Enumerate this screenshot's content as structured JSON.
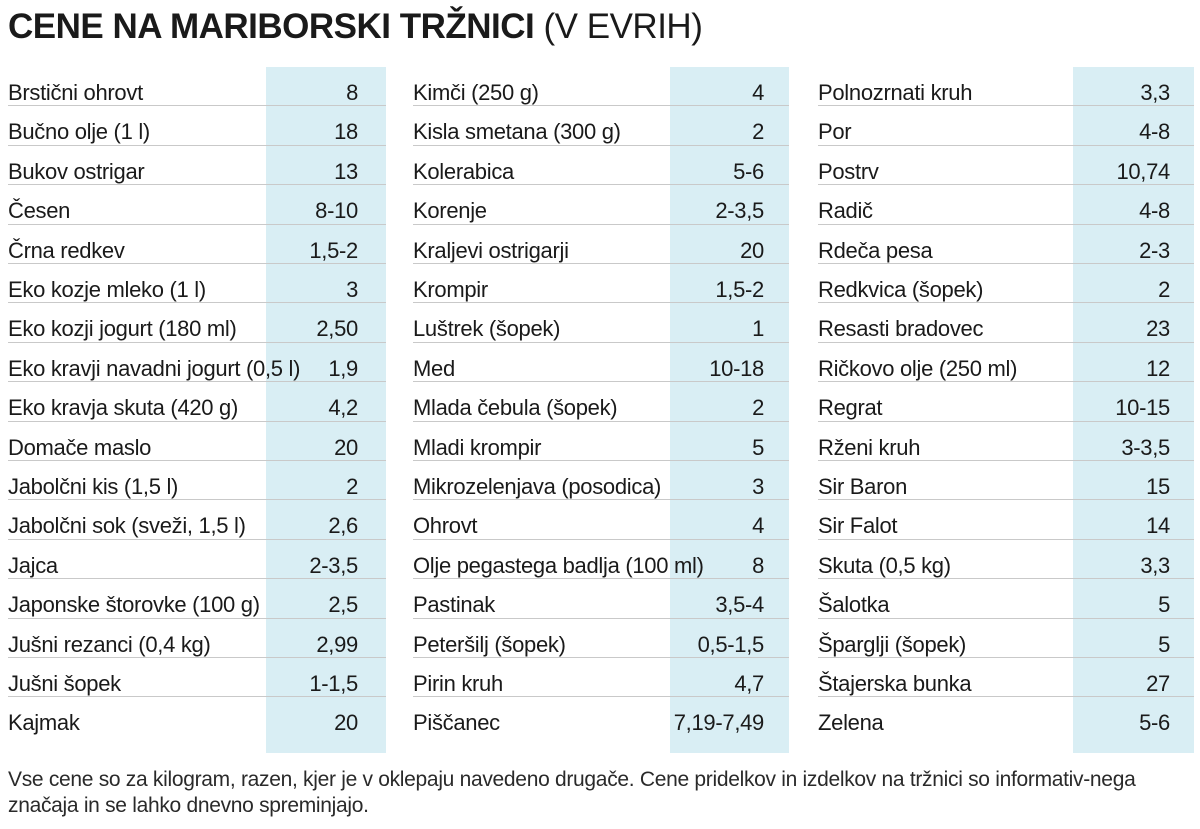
{
  "title": {
    "main": "CENE NA MARIBORSKI TRŽNICI",
    "unit": "(V EVRIH)"
  },
  "colors": {
    "band": "#d9eef4",
    "divider": "#c9c9c9",
    "text": "#1a1a1a"
  },
  "columns": [
    [
      {
        "name": "Brstični ohrovt",
        "price": "8"
      },
      {
        "name": "Bučno olje (1 l)",
        "price": "18"
      },
      {
        "name": "Bukov ostrigar",
        "price": "13"
      },
      {
        "name": "Česen",
        "price": "8-10"
      },
      {
        "name": "Črna redkev",
        "price": "1,5-2"
      },
      {
        "name": "Eko kozje mleko (1 l)",
        "price": "3"
      },
      {
        "name": "Eko kozji jogurt (180 ml)",
        "price": "2,50"
      },
      {
        "name": "Eko kravji navadni jogurt (0,5 l)",
        "price": "1,9"
      },
      {
        "name": "Eko kravja skuta (420 g)",
        "price": "4,2"
      },
      {
        "name": "Domače maslo",
        "price": "20"
      },
      {
        "name": "Jabolčni kis (1,5 l)",
        "price": "2"
      },
      {
        "name": "Jabolčni sok (sveži, 1,5 l)",
        "price": "2,6"
      },
      {
        "name": "Jajca",
        "price": "2-3,5"
      },
      {
        "name": "Japonske štorovke (100 g)",
        "price": "2,5"
      },
      {
        "name": "Jušni rezanci (0,4 kg)",
        "price": "2,99"
      },
      {
        "name": "Jušni šopek",
        "price": "1-1,5"
      },
      {
        "name": "Kajmak",
        "price": "20"
      }
    ],
    [
      {
        "name": "Kimči (250 g)",
        "price": "4"
      },
      {
        "name": "Kisla smetana (300 g)",
        "price": "2"
      },
      {
        "name": "Kolerabica",
        "price": "5-6"
      },
      {
        "name": "Korenje",
        "price": "2-3,5"
      },
      {
        "name": "Kraljevi ostrigarji",
        "price": "20"
      },
      {
        "name": "Krompir",
        "price": "1,5-2"
      },
      {
        "name": "Luštrek (šopek)",
        "price": "1"
      },
      {
        "name": "Med",
        "price": "10-18"
      },
      {
        "name": "Mlada čebula (šopek)",
        "price": "2"
      },
      {
        "name": "Mladi krompir",
        "price": "5"
      },
      {
        "name": "Mikrozelenjava (posodica)",
        "price": "3"
      },
      {
        "name": "Ohrovt",
        "price": "4"
      },
      {
        "name": "Olje pegastega badlja (100 ml)",
        "price": "8"
      },
      {
        "name": "Pastinak",
        "price": "3,5-4"
      },
      {
        "name": "Peteršilj (šopek)",
        "price": "0,5-1,5"
      },
      {
        "name": "Pirin kruh",
        "price": "4,7"
      },
      {
        "name": "Piščanec",
        "price": "7,19-7,49"
      }
    ],
    [
      {
        "name": "Polnozrnati kruh",
        "price": "3,3"
      },
      {
        "name": "Por",
        "price": "4-8"
      },
      {
        "name": "Postrv",
        "price": "10,74"
      },
      {
        "name": "Radič",
        "price": "4-8"
      },
      {
        "name": "Rdeča pesa",
        "price": "2-3"
      },
      {
        "name": "Redkvica (šopek)",
        "price": "2"
      },
      {
        "name": "Resasti bradovec",
        "price": "23"
      },
      {
        "name": "Ričkovo olje (250 ml)",
        "price": "12"
      },
      {
        "name": "Regrat",
        "price": "10-15"
      },
      {
        "name": "Rženi kruh",
        "price": "3-3,5"
      },
      {
        "name": "Sir Baron",
        "price": "15"
      },
      {
        "name": "Sir Falot",
        "price": "14"
      },
      {
        "name": "Skuta (0,5 kg)",
        "price": "3,3"
      },
      {
        "name": "Šalotka",
        "price": "5"
      },
      {
        "name": "Špargljі (šopek)",
        "price": "5"
      },
      {
        "name": "Štajerska bunka",
        "price": "27"
      },
      {
        "name": "Zelena",
        "price": "5-6"
      }
    ]
  ],
  "footnote": "Vse cene so za kilogram, razen, kjer je v oklepaju navedeno drugače. Cene pridelkov in izdelkov na tržnici so informativ-nega značaja in se lahko dnevno spreminjajo."
}
